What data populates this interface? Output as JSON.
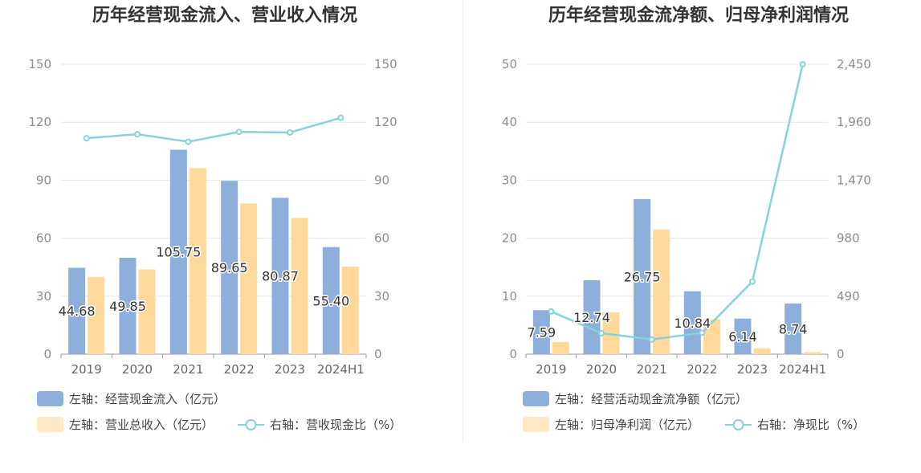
{
  "chart_data": [
    {
      "type": "bar",
      "title": "历年经营现金流入、营业收入情况",
      "categories": [
        "2019",
        "2020",
        "2021",
        "2022",
        "2023",
        "2024H1"
      ],
      "left_axis": {
        "ylim": [
          0,
          150
        ],
        "ticks": [
          "0",
          "30",
          "60",
          "90",
          "120",
          "150"
        ],
        "values": [
          0,
          30,
          60,
          90,
          120,
          150
        ]
      },
      "right_axis": {
        "ylim": [
          0,
          150
        ],
        "ticks": [
          "0",
          "30",
          "60",
          "90",
          "120",
          "150"
        ],
        "values": [
          0,
          30,
          60,
          90,
          120,
          150
        ]
      },
      "grid": true,
      "legend_position": "bottom-left",
      "series": [
        {
          "name": "左轴：经营现金流入（亿元）",
          "type": "bar",
          "axis": "left",
          "color": "#8eaedb",
          "values": [
            44.68,
            49.85,
            105.75,
            89.65,
            80.87,
            55.4
          ],
          "labels": [
            "44.68",
            "49.85",
            "105.75",
            "89.65",
            "80.87",
            "55.40"
          ]
        },
        {
          "name": "左轴：营业总收入（亿元）",
          "type": "bar",
          "axis": "left",
          "color": "#ffd89b",
          "values": [
            40.0,
            43.8,
            96.2,
            78.0,
            70.5,
            45.3
          ]
        },
        {
          "name": "右轴：营收现金比（%）",
          "type": "line",
          "axis": "right",
          "color": "#86d3db",
          "values": [
            111.7,
            113.8,
            109.9,
            115.0,
            114.7,
            122.3
          ]
        }
      ]
    },
    {
      "type": "bar",
      "title": "历年经营现金流净额、归母净利润情况",
      "categories": [
        "2019",
        "2020",
        "2021",
        "2022",
        "2023",
        "2024H1"
      ],
      "left_axis": {
        "ylim": [
          0,
          50
        ],
        "ticks": [
          "0",
          "10",
          "20",
          "30",
          "40",
          "50"
        ],
        "values": [
          0,
          10,
          20,
          30,
          40,
          50
        ]
      },
      "right_axis": {
        "ylim": [
          0,
          2450
        ],
        "ticks": [
          "0",
          "490",
          "980",
          "1,470",
          "1,960",
          "2,450"
        ],
        "values": [
          0,
          490,
          980,
          1470,
          1960,
          2450
        ]
      },
      "grid": true,
      "legend_position": "bottom-left",
      "series": [
        {
          "name": "左轴：经营活动现金流净额（亿元）",
          "type": "bar",
          "axis": "left",
          "color": "#8eaedb",
          "values": [
            7.59,
            12.74,
            26.75,
            10.84,
            6.14,
            8.74
          ],
          "labels": [
            "7.59",
            "12.74",
            "26.75",
            "10.84",
            "6.14",
            "8.74"
          ]
        },
        {
          "name": "左轴：归母净利润（亿元）",
          "type": "bar",
          "axis": "left",
          "color": "#ffd89b",
          "values": [
            2.1,
            7.2,
            21.5,
            6.0,
            1.0,
            0.35
          ]
        },
        {
          "name": "右轴：净现比（%）",
          "type": "line",
          "axis": "right",
          "color": "#86d3db",
          "values": [
            361,
            177,
            124,
            181,
            614,
            2450
          ]
        }
      ]
    }
  ]
}
